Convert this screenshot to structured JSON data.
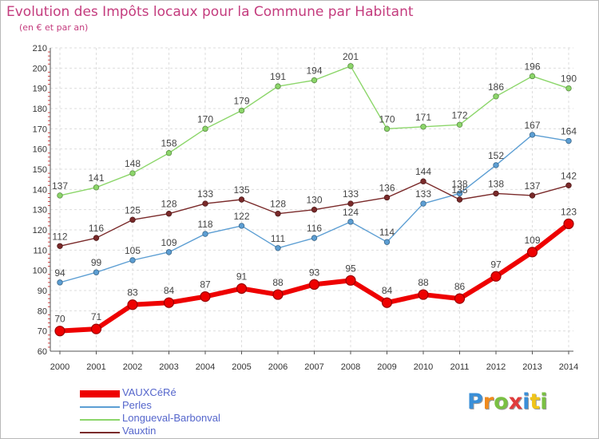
{
  "chart_data": {
    "type": "line",
    "title": "Evolution des Impôts locaux pour la Commune par Habitant",
    "subtitle": "(en € et par an)",
    "x": [
      "2000",
      "2001",
      "2002",
      "2003",
      "2004",
      "2005",
      "2006",
      "2007",
      "2008",
      "2009",
      "2010",
      "2011",
      "2012",
      "2013",
      "2014"
    ],
    "ylim": [
      60,
      210
    ],
    "yticks": [
      60,
      70,
      80,
      90,
      100,
      110,
      120,
      130,
      140,
      150,
      160,
      170,
      180,
      190,
      200,
      210
    ],
    "grid": true,
    "legend_position": "bottom-left",
    "series": [
      {
        "name": "Longueval-Barbonval",
        "color": "#8cd66a",
        "values": [
          137,
          141,
          148,
          158,
          170,
          179,
          191,
          194,
          201,
          170,
          171,
          172,
          186,
          196,
          190
        ]
      },
      {
        "name": "Perles",
        "color": "#5c9ed3",
        "values": [
          94,
          99,
          105,
          109,
          118,
          122,
          111,
          116,
          124,
          114,
          133,
          138,
          152,
          167,
          164
        ]
      },
      {
        "name": "Vauxtin",
        "color": "#7a2a2a",
        "values": [
          112,
          116,
          125,
          128,
          133,
          135,
          128,
          130,
          133,
          136,
          144,
          135,
          138,
          137,
          142
        ]
      },
      {
        "name": "VAUXCéRé",
        "color": "#ee0000",
        "values": [
          70,
          71,
          83,
          84,
          87,
          91,
          88,
          93,
          95,
          84,
          88,
          86,
          97,
          109,
          123
        ]
      }
    ],
    "legend_order": [
      "VAUXCéRé",
      "Perles",
      "Longueval-Barbonval",
      "Vauxtin"
    ]
  },
  "logo": {
    "letters": [
      "P",
      "r",
      "o",
      "x",
      "i",
      "t",
      "i"
    ],
    "colors": [
      "#3a8fd8",
      "#f08a1c",
      "#7ac043",
      "#e03c3c",
      "#3a8fd8",
      "#f0c419",
      "#7ac043"
    ]
  }
}
